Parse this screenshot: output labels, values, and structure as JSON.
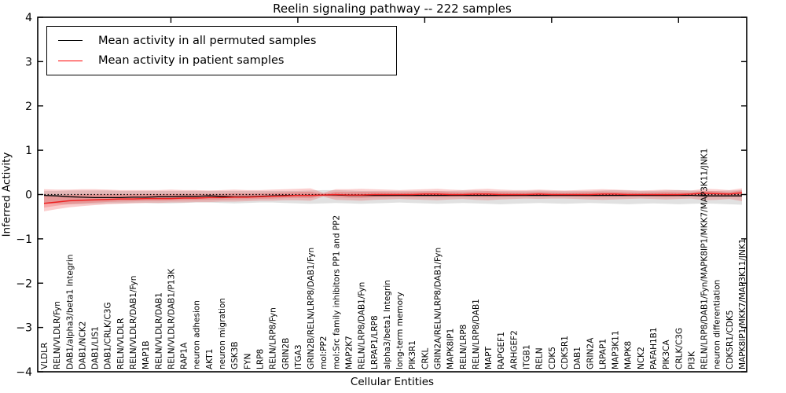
{
  "figure": {
    "title": "Reelin signaling pathway -- 222 samples",
    "xlabel": "Cellular Entities",
    "ylabel": "Inferred Activity"
  },
  "legend": {
    "items": [
      {
        "label": "Mean activity in all permuted samples",
        "color": "#000000"
      },
      {
        "label": "Mean activity in patient samples",
        "color": "#ff0000"
      }
    ]
  },
  "chart_data": {
    "type": "line",
    "title": "Reelin signaling pathway -- 222 samples",
    "xlabel": "Cellular Entities",
    "ylabel": "Inferred Activity",
    "ylim": [
      -4,
      4
    ],
    "yticks": [
      4,
      3,
      2,
      1,
      0,
      -1,
      -2,
      -3,
      -4
    ],
    "grid": false,
    "legend_position": "upper left",
    "zero_line": {
      "y": 0,
      "style": "dotted",
      "color": "#000000"
    },
    "categories": [
      "VLDLR",
      "RELN/VLDLR/Fyn",
      "DAB1/alpha3/beta1 Integrin",
      "DAB1/NCK2",
      "DAB1/LIS1",
      "DAB1/CRLK/C3G",
      "RELN/VLDLR",
      "RELN/VLDLR/DAB1/Fyn",
      "MAP1B",
      "RELN/VLDLR/DAB1",
      "RELN/VLDLR/DAB1/P13K",
      "RAP1A",
      "neuron adhesion",
      "AKT1",
      "neuron migration",
      "GSK3B",
      "FYN",
      "LRP8",
      "RELN/LRP8/Fyn",
      "GRIN2B",
      "ITGA3",
      "GRIN2B/RELN/LRP8/DAB1/Fyn",
      "mol:PP2",
      "mol:Src family inhibitors PP1 and PP2",
      "MAP2K7",
      "RELN/LRP8/DAB1/Fyn",
      "LRPAP1/LRP8",
      "alpha3/beta1 Integrin",
      "long-term memory",
      "PIK3R1",
      "CRKL",
      "GRIN2A/RELN/LRP8/DAB1/Fyn",
      "MAPK8IP1",
      "RELN/LRP8",
      "RELN/LRP8/DAB1",
      "MAPT",
      "RAPGEF1",
      "ARHGEF2",
      "ITGB1",
      "RELN",
      "CDK5",
      "CDK5R1",
      "DAB1",
      "GRIN2A",
      "LRPAP1",
      "MAP3K11",
      "MAPK8",
      "NCK2",
      "PAFAH1B1",
      "PIK3CA",
      "CRLK/C3G",
      "PI3K",
      "RELN/LRP8/DAB1/Fyn/MAPK8IP1/MKK7/MAP3K11/JNK1",
      "neuron differentiation",
      "CDK5R1/CDK5",
      "MAPK8IP1/MKK7/MAP3K11/JNK1"
    ],
    "series": [
      {
        "name": "Mean activity in all permuted samples",
        "color": "#000000",
        "values": [
          -0.02,
          -0.03,
          -0.05,
          -0.06,
          -0.07,
          -0.07,
          -0.07,
          -0.06,
          -0.06,
          -0.05,
          -0.05,
          -0.04,
          -0.04,
          -0.03,
          -0.04,
          -0.05,
          -0.05,
          -0.04,
          -0.03,
          -0.02,
          -0.02,
          -0.02,
          -0.01,
          -0.01,
          -0.02,
          -0.02,
          -0.02,
          -0.02,
          -0.02,
          -0.02,
          -0.02,
          -0.02,
          -0.02,
          -0.02,
          -0.02,
          -0.02,
          -0.02,
          -0.02,
          -0.02,
          -0.02,
          -0.02,
          -0.02,
          -0.02,
          -0.02,
          -0.02,
          -0.02,
          -0.02,
          -0.02,
          -0.02,
          -0.02,
          -0.02,
          -0.02,
          -0.03,
          -0.03,
          -0.03,
          -0.03
        ]
      },
      {
        "name": "Mean activity in patient samples",
        "color": "#ee2222",
        "values": [
          -0.2,
          -0.17,
          -0.14,
          -0.13,
          -0.12,
          -0.11,
          -0.1,
          -0.1,
          -0.09,
          -0.09,
          -0.09,
          -0.08,
          -0.08,
          -0.07,
          -0.07,
          -0.06,
          -0.06,
          -0.05,
          -0.04,
          -0.03,
          -0.02,
          -0.02,
          -0.01,
          0.0,
          -0.01,
          -0.01,
          0.0,
          0.0,
          0.0,
          0.0,
          0.01,
          0.01,
          0.0,
          0.0,
          0.01,
          0.01,
          0.0,
          0.0,
          0.0,
          0.01,
          0.0,
          0.0,
          0.0,
          0.0,
          0.01,
          0.01,
          0.0,
          0.0,
          0.0,
          0.0,
          0.0,
          0.01,
          0.03,
          0.02,
          0.01,
          0.04
        ]
      }
    ],
    "bands": [
      {
        "name": "permuted-samples-range",
        "color": "#aaaaaa",
        "opacity": 0.35,
        "upper": [
          0.08,
          0.08,
          0.09,
          0.09,
          0.09,
          0.09,
          0.08,
          0.08,
          0.08,
          0.08,
          0.08,
          0.08,
          0.08,
          0.08,
          0.08,
          0.08,
          0.08,
          0.08,
          0.08,
          0.08,
          0.08,
          0.09,
          0.1,
          0.1,
          0.09,
          0.08,
          0.08,
          0.08,
          0.08,
          0.08,
          0.08,
          0.08,
          0.08,
          0.09,
          0.09,
          0.08,
          0.08,
          0.08,
          0.08,
          0.09,
          0.08,
          0.08,
          0.08,
          0.08,
          0.09,
          0.1,
          0.09,
          0.08,
          0.08,
          0.09,
          0.1,
          0.09,
          0.08,
          0.08,
          0.09,
          0.1
        ],
        "lower": [
          -0.2,
          -0.21,
          -0.22,
          -0.22,
          -0.21,
          -0.2,
          -0.2,
          -0.19,
          -0.19,
          -0.2,
          -0.2,
          -0.19,
          -0.18,
          -0.18,
          -0.19,
          -0.2,
          -0.19,
          -0.18,
          -0.18,
          -0.19,
          -0.2,
          -0.21,
          -0.2,
          -0.19,
          -0.2,
          -0.21,
          -0.2,
          -0.19,
          -0.18,
          -0.19,
          -0.2,
          -0.21,
          -0.2,
          -0.19,
          -0.2,
          -0.21,
          -0.22,
          -0.21,
          -0.2,
          -0.19,
          -0.2,
          -0.21,
          -0.2,
          -0.19,
          -0.2,
          -0.21,
          -0.22,
          -0.21,
          -0.2,
          -0.21,
          -0.22,
          -0.21,
          -0.2,
          -0.21,
          -0.22,
          -0.23
        ]
      },
      {
        "name": "patient-samples-range",
        "color": "#ee3333",
        "opacity": 0.24,
        "upper": [
          0.12,
          0.11,
          0.11,
          0.12,
          0.12,
          0.11,
          0.1,
          0.1,
          0.1,
          0.1,
          0.11,
          0.1,
          0.1,
          0.09,
          0.1,
          0.11,
          0.1,
          0.1,
          0.11,
          0.12,
          0.13,
          0.14,
          0.04,
          0.12,
          0.12,
          0.13,
          0.12,
          0.11,
          0.1,
          0.11,
          0.12,
          0.13,
          0.11,
          0.1,
          0.12,
          0.13,
          0.11,
          0.1,
          0.1,
          0.11,
          0.1,
          0.09,
          0.1,
          0.11,
          0.12,
          0.11,
          0.1,
          0.09,
          0.1,
          0.11,
          0.1,
          0.09,
          0.13,
          0.12,
          0.1,
          0.14
        ],
        "lower": [
          -0.38,
          -0.33,
          -0.29,
          -0.26,
          -0.24,
          -0.22,
          -0.21,
          -0.2,
          -0.19,
          -0.19,
          -0.18,
          -0.18,
          -0.17,
          -0.17,
          -0.16,
          -0.16,
          -0.15,
          -0.14,
          -0.14,
          -0.13,
          -0.13,
          -0.14,
          -0.05,
          -0.12,
          -0.13,
          -0.14,
          -0.12,
          -0.11,
          -0.1,
          -0.11,
          -0.12,
          -0.13,
          -0.11,
          -0.1,
          -0.12,
          -0.13,
          -0.11,
          -0.1,
          -0.09,
          -0.1,
          -0.09,
          -0.09,
          -0.1,
          -0.11,
          -0.12,
          -0.11,
          -0.1,
          -0.09,
          -0.1,
          -0.11,
          -0.1,
          -0.09,
          -0.13,
          -0.12,
          -0.1,
          -0.15
        ]
      }
    ]
  }
}
